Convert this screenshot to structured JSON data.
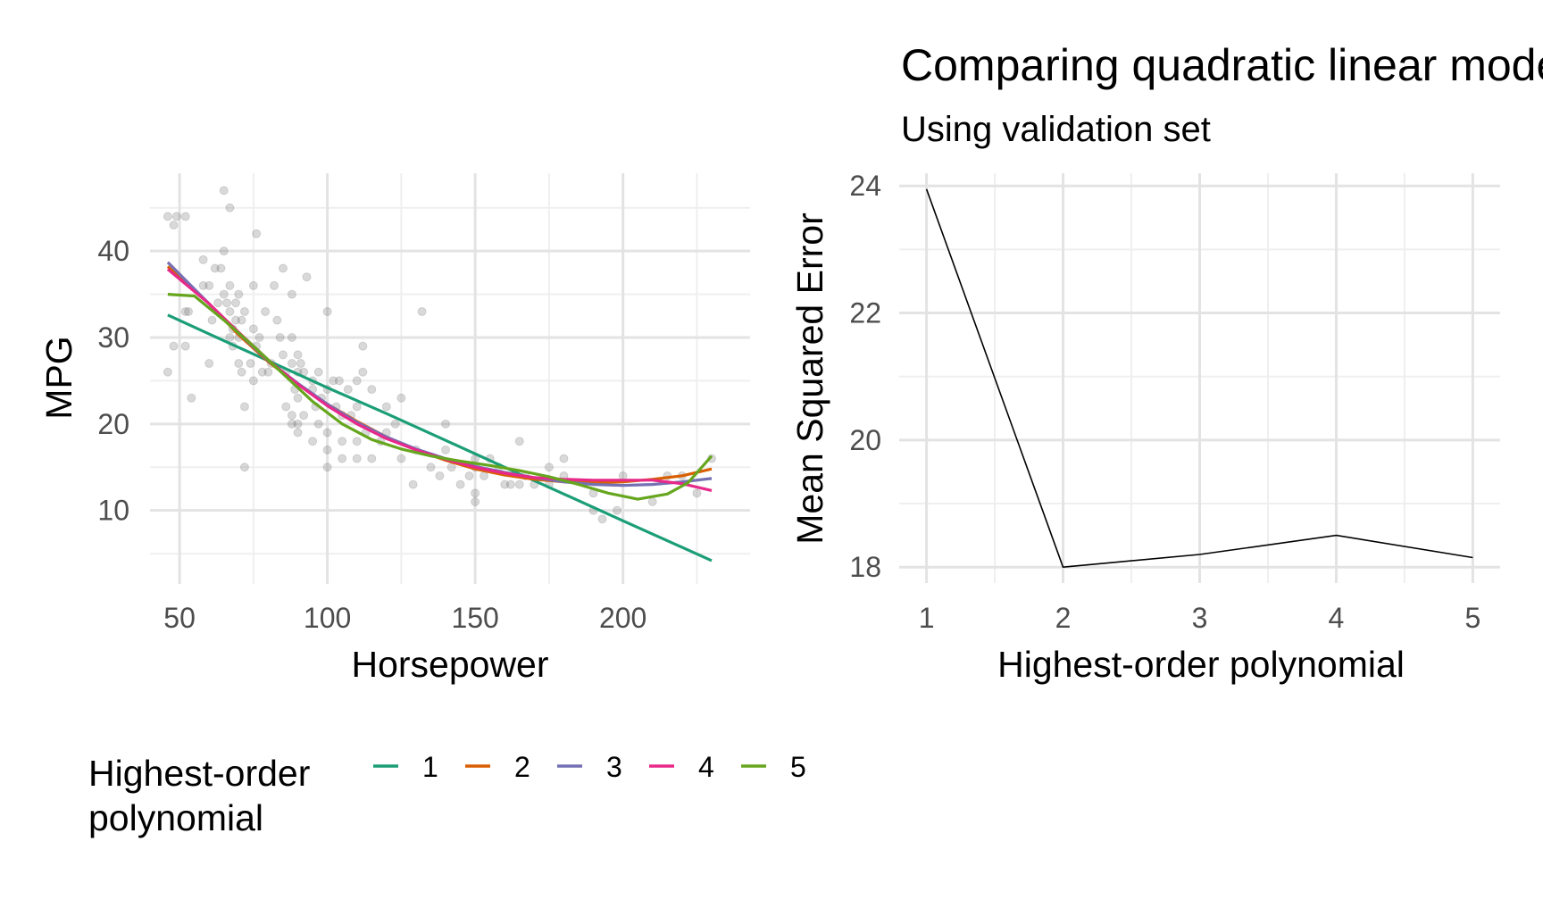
{
  "chart_data": [
    {
      "type": "scatter",
      "xlabel": "Horsepower",
      "ylabel": "MPG",
      "xlim": [
        40,
        243
      ],
      "ylim": [
        1.5,
        49
      ],
      "x_ticks": [
        50,
        100,
        150,
        200
      ],
      "y_ticks": [
        10,
        20,
        30,
        40
      ],
      "grid": true,
      "points": [
        [
          46,
          26
        ],
        [
          46,
          44
        ],
        [
          48,
          43
        ],
        [
          48,
          29
        ],
        [
          49,
          44
        ],
        [
          52,
          29
        ],
        [
          52,
          33
        ],
        [
          52,
          44
        ],
        [
          53,
          33
        ],
        [
          54,
          23
        ],
        [
          58,
          36
        ],
        [
          58,
          39
        ],
        [
          60,
          36
        ],
        [
          60,
          27
        ],
        [
          61,
          32
        ],
        [
          62,
          38
        ],
        [
          63,
          34
        ],
        [
          64,
          38
        ],
        [
          65,
          35
        ],
        [
          65,
          40
        ],
        [
          65,
          47
        ],
        [
          66,
          34
        ],
        [
          67,
          36
        ],
        [
          67,
          45
        ],
        [
          67,
          30
        ],
        [
          67,
          33
        ],
        [
          68,
          31
        ],
        [
          68,
          29
        ],
        [
          69,
          34
        ],
        [
          69,
          32
        ],
        [
          70,
          30
        ],
        [
          70,
          27
        ],
        [
          70,
          35
        ],
        [
          71,
          26
        ],
        [
          71,
          32
        ],
        [
          72,
          22
        ],
        [
          72,
          15
        ],
        [
          72,
          33
        ],
        [
          74,
          27
        ],
        [
          75,
          31
        ],
        [
          75,
          25
        ],
        [
          75,
          36
        ],
        [
          76,
          29
        ],
        [
          76,
          42
        ],
        [
          77,
          30
        ],
        [
          78,
          26
        ],
        [
          79,
          33
        ],
        [
          80,
          26
        ],
        [
          81,
          27
        ],
        [
          82,
          36
        ],
        [
          83,
          32
        ],
        [
          84,
          30
        ],
        [
          85,
          28
        ],
        [
          85,
          38
        ],
        [
          86,
          26
        ],
        [
          86,
          22
        ],
        [
          88,
          27
        ],
        [
          88,
          30
        ],
        [
          88,
          35
        ],
        [
          88,
          20
        ],
        [
          88,
          21
        ],
        [
          89,
          24
        ],
        [
          90,
          28
        ],
        [
          90,
          26
        ],
        [
          90,
          23
        ],
        [
          90,
          20
        ],
        [
          90,
          19
        ],
        [
          91,
          27
        ],
        [
          92,
          26
        ],
        [
          92,
          21
        ],
        [
          93,
          37
        ],
        [
          95,
          25
        ],
        [
          95,
          24
        ],
        [
          95,
          18
        ],
        [
          96,
          22
        ],
        [
          97,
          26
        ],
        [
          97,
          20
        ],
        [
          98,
          23
        ],
        [
          100,
          24
        ],
        [
          100,
          33
        ],
        [
          100,
          19
        ],
        [
          100,
          17
        ],
        [
          100,
          15
        ],
        [
          102,
          25
        ],
        [
          103,
          22
        ],
        [
          104,
          25
        ],
        [
          105,
          21
        ],
        [
          105,
          18
        ],
        [
          105,
          16
        ],
        [
          107,
          24
        ],
        [
          108,
          21
        ],
        [
          110,
          25
        ],
        [
          110,
          22
        ],
        [
          110,
          18
        ],
        [
          110,
          16
        ],
        [
          112,
          26
        ],
        [
          112,
          29
        ],
        [
          113,
          19
        ],
        [
          115,
          24
        ],
        [
          115,
          16
        ],
        [
          118,
          18
        ],
        [
          120,
          22
        ],
        [
          120,
          19
        ],
        [
          123,
          20
        ],
        [
          125,
          23
        ],
        [
          125,
          16
        ],
        [
          129,
          13
        ],
        [
          130,
          17
        ],
        [
          132,
          33
        ],
        [
          135,
          15
        ],
        [
          138,
          14
        ],
        [
          140,
          20
        ],
        [
          140,
          17
        ],
        [
          142,
          15
        ],
        [
          145,
          13
        ],
        [
          148,
          14
        ],
        [
          150,
          16
        ],
        [
          150,
          15
        ],
        [
          150,
          12
        ],
        [
          150,
          11
        ],
        [
          153,
          14
        ],
        [
          155,
          16
        ],
        [
          158,
          15
        ],
        [
          160,
          13
        ],
        [
          162,
          13
        ],
        [
          165,
          18
        ],
        [
          165,
          13
        ],
        [
          167,
          14
        ],
        [
          170,
          13
        ],
        [
          175,
          15
        ],
        [
          175,
          13
        ],
        [
          180,
          14
        ],
        [
          180,
          16
        ],
        [
          190,
          12
        ],
        [
          190,
          10
        ],
        [
          193,
          9
        ],
        [
          198,
          10
        ],
        [
          200,
          14
        ],
        [
          210,
          11
        ],
        [
          215,
          14
        ],
        [
          220,
          14
        ],
        [
          225,
          12
        ],
        [
          230,
          16
        ]
      ],
      "series": [
        {
          "name": "1",
          "color": "#1b9e77",
          "x": [
            46,
            60,
            80,
            100,
            120,
            140,
            160,
            180,
            200,
            230
          ],
          "y": [
            32.6,
            30.4,
            27.3,
            24.2,
            21.2,
            18.1,
            15.0,
            11.9,
            8.8,
            4.2
          ]
        },
        {
          "name": "2",
          "color": "#d95f02",
          "x": [
            46,
            60,
            70,
            80,
            90,
            100,
            110,
            120,
            130,
            140,
            150,
            160,
            170,
            180,
            190,
            200,
            210,
            220,
            230
          ],
          "y": [
            38.2,
            33.9,
            30.3,
            27.2,
            24.6,
            22.3,
            20.3,
            18.5,
            17.0,
            15.8,
            14.8,
            14.1,
            13.6,
            13.3,
            13.2,
            13.3,
            13.6,
            14.0,
            14.8
          ]
        },
        {
          "name": "3",
          "color": "#7570b3",
          "x": [
            46,
            60,
            70,
            80,
            90,
            100,
            110,
            120,
            130,
            140,
            150,
            160,
            170,
            180,
            190,
            200,
            210,
            220,
            230
          ],
          "y": [
            38.7,
            33.9,
            30.5,
            27.3,
            24.7,
            22.3,
            20.2,
            18.5,
            17.1,
            16.0,
            15.1,
            14.4,
            13.8,
            13.3,
            13.0,
            12.9,
            13.0,
            13.3,
            13.7
          ]
        },
        {
          "name": "4",
          "color": "#e7298a",
          "x": [
            46,
            60,
            70,
            80,
            90,
            100,
            110,
            120,
            130,
            140,
            150,
            160,
            170,
            180,
            190,
            200,
            210,
            220,
            230
          ],
          "y": [
            37.9,
            33.9,
            30.6,
            27.4,
            24.6,
            22.1,
            20.0,
            18.3,
            17.0,
            15.9,
            15.0,
            14.3,
            13.8,
            13.6,
            13.5,
            13.5,
            13.5,
            13.1,
            12.3
          ]
        },
        {
          "name": "5",
          "color": "#66a61e",
          "x": [
            46,
            55,
            65,
            75,
            85,
            95,
            105,
            115,
            125,
            135,
            145,
            155,
            165,
            175,
            185,
            195,
            205,
            215,
            222,
            230
          ],
          "y": [
            35.0,
            34.8,
            32.0,
            29.0,
            25.8,
            22.6,
            20.0,
            18.2,
            17.1,
            16.3,
            15.7,
            15.2,
            14.6,
            13.9,
            13.0,
            12.0,
            11.3,
            11.9,
            13.2,
            16.3
          ]
        }
      ]
    },
    {
      "type": "line",
      "title": "Comparing quadratic linear models",
      "subtitle": "Using validation set",
      "xlabel": "Highest-order polynomial",
      "ylabel": "Mean Squared Error",
      "x": [
        1,
        2,
        3,
        4,
        5
      ],
      "y": [
        23.95,
        18.0,
        18.2,
        18.5,
        18.15
      ],
      "xlim": [
        0.8,
        5.2
      ],
      "ylim": [
        17.75,
        24.2
      ],
      "x_ticks": [
        1,
        2,
        3,
        4,
        5
      ],
      "y_ticks": [
        18,
        20,
        22,
        24
      ],
      "color": "#000000",
      "grid": true
    }
  ],
  "legend": {
    "title_line1": "Highest-order",
    "title_line2": "polynomial",
    "position": "bottom-left",
    "items": [
      {
        "label": "1",
        "color": "#1b9e77"
      },
      {
        "label": "2",
        "color": "#d95f02"
      },
      {
        "label": "3",
        "color": "#7570b3"
      },
      {
        "label": "4",
        "color": "#e7298a"
      },
      {
        "label": "5",
        "color": "#66a61e"
      }
    ]
  }
}
